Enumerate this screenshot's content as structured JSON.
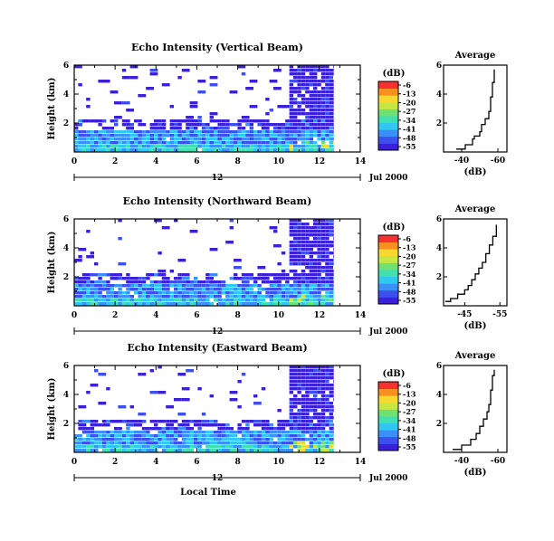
{
  "colors": {
    "echo_ramp": [
      "#3a20d8",
      "#3c50f0",
      "#3a90f8",
      "#30c8f0",
      "#40e0b0",
      "#70e070",
      "#c8e640",
      "#f8d830",
      "#f89020",
      "#f83030"
    ],
    "average_line": "#000000",
    "axis": "#000000"
  },
  "chart_data": [
    {
      "type": "heatmap",
      "title": "Echo Intensity (Vertical Beam)",
      "xlabel": "",
      "ylabel": "Height (km)",
      "xlim": [
        0,
        14
      ],
      "ylim": [
        0,
        6
      ],
      "x_ticks": [
        "0",
        "2",
        "4",
        "6",
        "8",
        "10",
        "12",
        "14"
      ],
      "y_ticks": [
        "2",
        "4",
        "6"
      ],
      "time_marker": "12",
      "date_label": "Jul 2000",
      "colorbar": {
        "unit": "(dB)",
        "ticks": [
          "-6",
          "-13",
          "-20",
          "-27",
          "-34",
          "-41",
          "-48",
          "-55"
        ],
        "range": [
          -55,
          -6
        ]
      },
      "data_extent_x": [
        0,
        12.7
      ],
      "average_profile": {
        "title": "Average",
        "xlabel": "(dB)",
        "x_ticks": [
          "-40",
          "-60"
        ],
        "y_ticks": [
          "2",
          "4",
          "6"
        ],
        "xlim": [
          -30,
          -65
        ],
        "ylim": [
          0,
          6
        ],
        "points": [
          [
            -37,
            0.2
          ],
          [
            -42,
            0.5
          ],
          [
            -46,
            0.9
          ],
          [
            -47,
            1.1
          ],
          [
            -50,
            1.4
          ],
          [
            -51,
            1.9
          ],
          [
            -53,
            2.3
          ],
          [
            -55,
            2.8
          ],
          [
            -56,
            3.3
          ],
          [
            -56,
            3.8
          ],
          [
            -57,
            4.3
          ],
          [
            -57,
            4.8
          ],
          [
            -58,
            5.3
          ],
          [
            -58,
            5.7
          ]
        ]
      }
    },
    {
      "type": "heatmap",
      "title": "Echo Intensity (Northward Beam)",
      "xlabel": "",
      "ylabel": "Height (km)",
      "xlim": [
        0,
        14
      ],
      "ylim": [
        0,
        6
      ],
      "x_ticks": [
        "0",
        "2",
        "4",
        "6",
        "8",
        "10",
        "12",
        "14"
      ],
      "y_ticks": [
        "2",
        "4",
        "6"
      ],
      "time_marker": "12",
      "date_label": "Jul 2000",
      "colorbar": {
        "unit": "(dB)",
        "ticks": [
          "-6",
          "-13",
          "-20",
          "-27",
          "-34",
          "-41",
          "-48",
          "-55"
        ],
        "range": [
          -55,
          -6
        ]
      },
      "data_extent_x": [
        0,
        12.7
      ],
      "average_profile": {
        "title": "Average",
        "xlabel": "(dB)",
        "x_ticks": [
          "-45",
          "-55"
        ],
        "y_ticks": [
          "2",
          "4",
          "6"
        ],
        "xlim": [
          -39,
          -57
        ],
        "ylim": [
          0,
          6
        ],
        "points": [
          [
            -39.5,
            0.3
          ],
          [
            -41,
            0.5
          ],
          [
            -43,
            0.8
          ],
          [
            -45,
            1.1
          ],
          [
            -46,
            1.4
          ],
          [
            -47,
            1.8
          ],
          [
            -48,
            2.2
          ],
          [
            -49,
            2.6
          ],
          [
            -50,
            3.0
          ],
          [
            -51,
            3.6
          ],
          [
            -52,
            4.2
          ],
          [
            -53,
            4.8
          ],
          [
            -54,
            5.3
          ],
          [
            -54,
            5.6
          ]
        ]
      }
    },
    {
      "type": "heatmap",
      "title": "Echo Intensity (Eastward Beam)",
      "xlabel": "Local Time",
      "ylabel": "Height (km)",
      "xlim": [
        0,
        14
      ],
      "ylim": [
        0,
        6
      ],
      "x_ticks": [
        "0",
        "2",
        "4",
        "6",
        "8",
        "10",
        "12",
        "14"
      ],
      "y_ticks": [
        "2",
        "4",
        "6"
      ],
      "time_marker": "12",
      "date_label": "Jul 2000",
      "colorbar": {
        "unit": "(dB)",
        "ticks": [
          "-6",
          "-13",
          "-20",
          "-27",
          "-34",
          "-41",
          "-48",
          "-55"
        ],
        "range": [
          -55,
          -6
        ]
      },
      "data_extent_x": [
        0,
        12.7
      ],
      "average_profile": {
        "title": "Average",
        "xlabel": "(dB)",
        "x_ticks": [
          "-40",
          "-60"
        ],
        "y_ticks": [
          "2",
          "4",
          "6"
        ],
        "xlim": [
          -30,
          -65
        ],
        "ylim": [
          0,
          6
        ],
        "points": [
          [
            -35,
            0.2
          ],
          [
            -40,
            0.5
          ],
          [
            -45,
            0.9
          ],
          [
            -48,
            1.3
          ],
          [
            -50,
            1.8
          ],
          [
            -52,
            2.3
          ],
          [
            -54,
            2.8
          ],
          [
            -55,
            3.3
          ],
          [
            -56,
            3.8
          ],
          [
            -56,
            4.3
          ],
          [
            -57,
            4.8
          ],
          [
            -57,
            5.3
          ],
          [
            -58,
            5.7
          ]
        ]
      }
    }
  ]
}
